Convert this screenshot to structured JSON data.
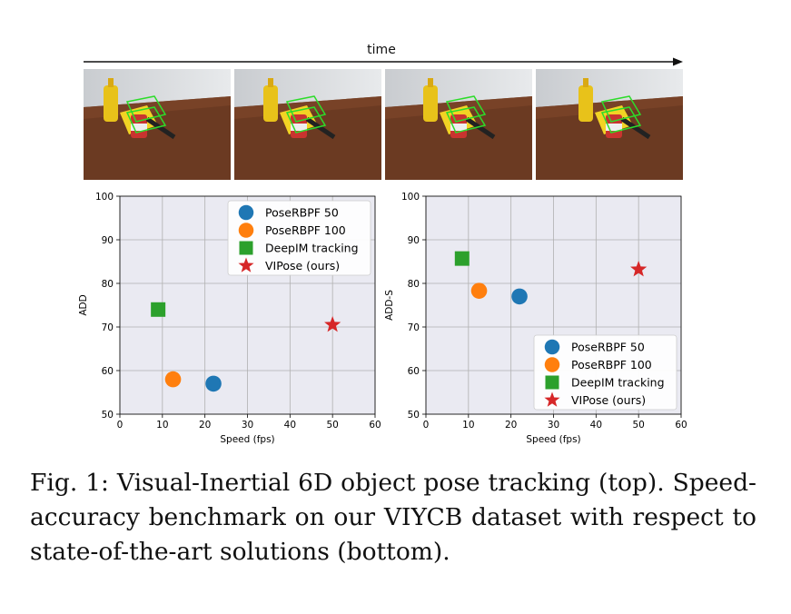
{
  "time_label": "time",
  "photos": [
    {
      "name": "frame-1"
    },
    {
      "name": "frame-2"
    },
    {
      "name": "frame-3"
    },
    {
      "name": "frame-4"
    }
  ],
  "chart_data": [
    {
      "type": "scatter",
      "xlabel": "Speed (fps)",
      "ylabel": "ADD",
      "xlim": [
        0,
        60
      ],
      "ylim": [
        50,
        100
      ],
      "xticks": [
        "0",
        "10",
        "20",
        "30",
        "40",
        "50",
        "60"
      ],
      "yticks": [
        "50",
        "60",
        "70",
        "80",
        "90",
        "100"
      ],
      "grid": true,
      "legend_position": "top-right",
      "series": [
        {
          "name": "PoseRBPF 50",
          "marker": "circle",
          "color": "#1f77b4",
          "x": 22,
          "y": 57
        },
        {
          "name": "PoseRBPF 100",
          "marker": "circle",
          "color": "#ff7f0e",
          "x": 12.5,
          "y": 58
        },
        {
          "name": "DeepIM tracking",
          "marker": "square",
          "color": "#2ca02c",
          "x": 9,
          "y": 74
        },
        {
          "name": "VIPose (ours)",
          "marker": "star",
          "color": "#d62728",
          "x": 50,
          "y": 70.5
        }
      ]
    },
    {
      "type": "scatter",
      "xlabel": "Speed (fps)",
      "ylabel": "ADD-S",
      "xlim": [
        0,
        60
      ],
      "ylim": [
        50,
        100
      ],
      "xticks": [
        "0",
        "10",
        "20",
        "30",
        "40",
        "50",
        "60"
      ],
      "yticks": [
        "50",
        "60",
        "70",
        "80",
        "90",
        "100"
      ],
      "grid": true,
      "legend_position": "bottom-right",
      "series": [
        {
          "name": "PoseRBPF 50",
          "marker": "circle",
          "color": "#1f77b4",
          "x": 22,
          "y": 77
        },
        {
          "name": "PoseRBPF 100",
          "marker": "circle",
          "color": "#ff7f0e",
          "x": 12.5,
          "y": 78.3
        },
        {
          "name": "DeepIM tracking",
          "marker": "square",
          "color": "#2ca02c",
          "x": 8.5,
          "y": 85.7
        },
        {
          "name": "VIPose (ours)",
          "marker": "star",
          "color": "#d62728",
          "x": 50,
          "y": 83.2
        }
      ]
    }
  ],
  "caption": "Fig. 1: Visual-Inertial 6D object pose tracking (top). Speed-accuracy benchmark on our VIYCB dataset with respect to state-of-the-art solutions (bottom)."
}
